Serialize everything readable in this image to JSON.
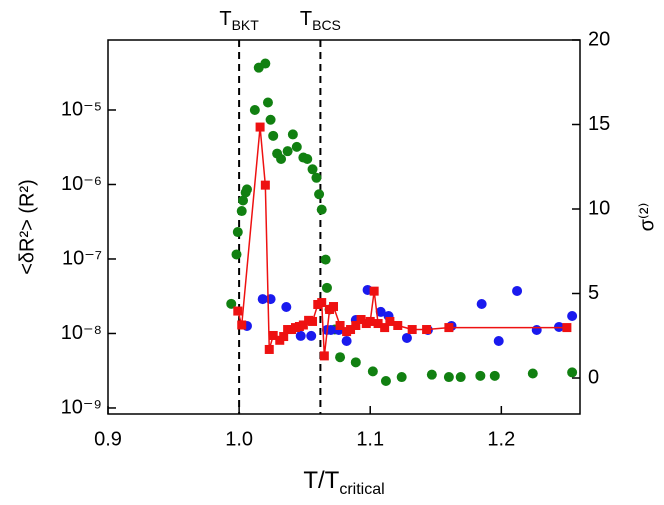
{
  "chart_data": {
    "type": "scatter",
    "xlabel": {
      "text": "T/T",
      "sub": "critical"
    },
    "ylabel": "<δR²> (R²)",
    "y2label": "σ⁽²⁾",
    "xlim": [
      0.9,
      1.26
    ],
    "xticks": [
      0.9,
      {
        "value": 1,
        "label": "1.0"
      },
      1.1,
      1.2
    ],
    "ylog": true,
    "ylim": [
      8.3e-10,
      8.7e-05
    ],
    "yticks": [
      {
        "value": 1e-09,
        "label": "10⁻⁹"
      },
      {
        "value": 1e-08,
        "label": "10⁻⁸"
      },
      {
        "value": 1e-07,
        "label": "10⁻⁷"
      },
      {
        "value": 1e-06,
        "label": "10⁻⁶"
      },
      {
        "value": 1e-05,
        "label": "10⁻⁵"
      }
    ],
    "y2lim": [
      -2.13,
      20
    ],
    "y2ticks": [
      0,
      5,
      10,
      15,
      20
    ],
    "annotations": [
      {
        "x": 1.0,
        "text": "T",
        "sub": "BKT"
      },
      {
        "x": 1.062,
        "text": "T",
        "sub": "BCS"
      }
    ],
    "series": [
      {
        "color": "#118011",
        "axis": "y",
        "marker": "circle",
        "x": [
          0.994,
          0.998,
          0.999,
          1.002,
          1.003,
          1.005,
          1.006,
          1.012,
          1.015,
          1.02,
          1.022,
          1.024,
          1.026,
          1.029,
          1.032,
          1.037,
          1.041,
          1.044,
          1.049,
          1.052,
          1.056,
          1.059,
          1.061,
          1.063,
          1.066,
          1.067,
          1.069,
          1.073,
          1.077,
          1.089,
          1.102,
          1.112,
          1.124,
          1.147,
          1.16,
          1.169,
          1.184,
          1.195,
          1.224,
          1.254
        ],
        "values": [
          2.5e-08,
          1.15e-07,
          2.3e-07,
          4.4e-07,
          6.1e-07,
          7.8e-07,
          8.6e-07,
          1e-05,
          3.7e-05,
          4.2e-05,
          1.26e-05,
          7.4e-06,
          4.5e-06,
          2.6e-06,
          2.2e-06,
          2.8e-06,
          4.7e-06,
          3.2e-06,
          2.3e-06,
          2.2e-06,
          1.6e-06,
          1.23e-06,
          7.4e-07,
          4.6e-07,
          9.8e-08,
          4.1e-08,
          2.1e-08,
          1.13e-08,
          4.8e-09,
          4.1e-09,
          3.1e-09,
          2.3e-09,
          2.6e-09,
          2.8e-09,
          2.6e-09,
          2.6e-09,
          2.7e-09,
          2.7e-09,
          2.9e-09,
          3e-09
        ]
      },
      {
        "color": "#1a1aee",
        "axis": "y2",
        "marker": "circle",
        "x": [
          1.006,
          1.018,
          1.024,
          1.036,
          1.047,
          1.055,
          1.067,
          1.07,
          1.076,
          1.082,
          1.089,
          1.098,
          1.108,
          1.114,
          1.128,
          1.144,
          1.162,
          1.185,
          1.198,
          1.212,
          1.227,
          1.244,
          1.254
        ],
        "values": [
          3.08,
          4.67,
          4.67,
          4.2,
          2.49,
          2.49,
          2.84,
          2.84,
          2.84,
          2.19,
          3.43,
          5.21,
          3.91,
          3.67,
          2.37,
          2.84,
          3.08,
          4.38,
          2.19,
          5.15,
          2.84,
          3.02,
          3.67
        ]
      },
      {
        "color": "#ee1111",
        "axis": "y",
        "marker": "square",
        "line": true,
        "x": [
          0.999,
          1.002,
          1.016,
          1.02,
          1.023,
          1.026,
          1.031,
          1.034,
          1.037,
          1.04,
          1.043,
          1.046,
          1.049,
          1.053,
          1.056,
          1.06,
          1.063,
          1.065,
          1.069,
          1.072,
          1.077,
          1.082,
          1.085,
          1.089,
          1.093,
          1.097,
          1.1,
          1.103,
          1.106,
          1.111,
          1.115,
          1.121,
          1.132,
          1.143,
          1.16,
          1.25
        ],
        "values": [
          2e-08,
          1.3e-08,
          5.9e-06,
          9.8e-07,
          6.1e-09,
          9.4e-09,
          8.1e-09,
          9.1e-09,
          1.13e-08,
          1.13e-08,
          1.2e-08,
          1.24e-08,
          1.3e-08,
          1.5e-08,
          1.45e-08,
          2.45e-08,
          2.6e-08,
          5e-09,
          2.1e-08,
          2.3e-08,
          1.28e-08,
          1.06e-08,
          1.13e-08,
          1.28e-08,
          1.54e-08,
          1.36e-08,
          1.45e-08,
          3.7e-08,
          1.36e-08,
          1.2e-08,
          1.45e-08,
          1.28e-08,
          1.13e-08,
          1.13e-08,
          1.2e-08,
          1.2e-08
        ]
      }
    ]
  }
}
